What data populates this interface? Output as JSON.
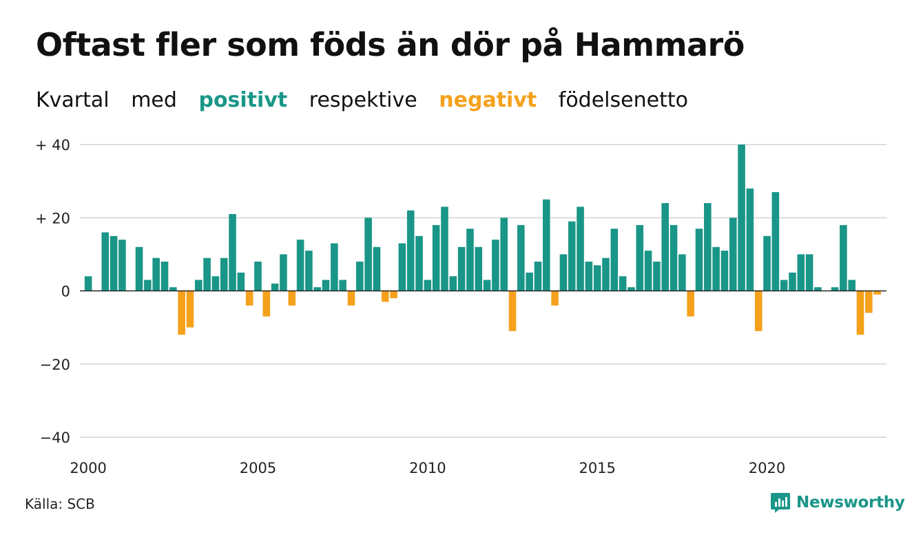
{
  "title": "Oftast fler som föds än dör på Hammarö",
  "subtitle": {
    "word1": "Kvartal",
    "word2": "med",
    "positive": "positivt",
    "word3": "respektive",
    "negative": "negativt",
    "word4": "födelsenetto"
  },
  "colors": {
    "positive": "#1a9688",
    "negative": "#f5a11c",
    "grid": "#dddddd",
    "zero": "#222222"
  },
  "chart_data": {
    "type": "bar",
    "x_start": 2000.0,
    "x_step": 0.25,
    "ylim": [
      -40,
      40
    ],
    "yticks": [
      40,
      20,
      0,
      -20,
      -40
    ],
    "ytick_labels": [
      "+ 40",
      "+ 20",
      "0",
      "−20",
      "−40"
    ],
    "xticks": [
      2000,
      2005,
      2010,
      2015,
      2020
    ],
    "xtick_labels": [
      "2000",
      "2005",
      "2010",
      "2015",
      "2020"
    ],
    "values": [
      4,
      0,
      16,
      15,
      14,
      0,
      12,
      3,
      9,
      8,
      1,
      -12,
      -10,
      3,
      9,
      4,
      9,
      21,
      5,
      -4,
      8,
      -7,
      2,
      10,
      -4,
      14,
      11,
      1,
      3,
      13,
      3,
      -4,
      8,
      20,
      12,
      -3,
      -2,
      13,
      22,
      15,
      3,
      18,
      23,
      4,
      12,
      17,
      12,
      3,
      14,
      20,
      -11,
      18,
      5,
      8,
      25,
      -4,
      10,
      19,
      23,
      8,
      7,
      9,
      17,
      4,
      1,
      18,
      11,
      8,
      24,
      18,
      10,
      -7,
      17,
      24,
      12,
      11,
      20,
      40,
      28,
      -11,
      15,
      27,
      3,
      5,
      10,
      10,
      1,
      0,
      1,
      18,
      3,
      -12,
      -6,
      -1
    ]
  },
  "source": "Källa: SCB",
  "brand": "Newsworthy"
}
